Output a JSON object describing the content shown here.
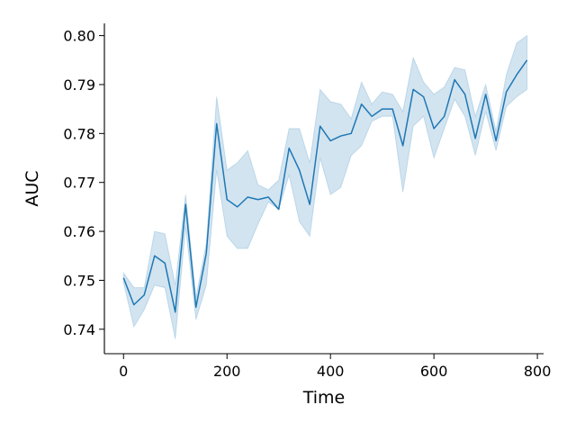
{
  "chart_data": {
    "type": "line",
    "xlabel": "Time",
    "ylabel": "AUC",
    "xlim": [
      -37,
      812
    ],
    "ylim": [
      0.735,
      0.8025
    ],
    "xticks": [
      0,
      200,
      400,
      600,
      800
    ],
    "yticks": [
      0.74,
      0.75,
      0.76,
      0.77,
      0.78,
      0.79,
      0.8
    ],
    "ytick_labels": [
      "0.74",
      "0.75",
      "0.76",
      "0.77",
      "0.78",
      "0.79",
      "0.80"
    ],
    "grid": false,
    "legend": "none",
    "series": [
      {
        "color": "#1f77b4",
        "band_color": "#1f77b4",
        "x": [
          0,
          20,
          40,
          60,
          80,
          100,
          120,
          140,
          160,
          180,
          200,
          220,
          240,
          260,
          280,
          300,
          320,
          340,
          360,
          380,
          400,
          420,
          440,
          460,
          480,
          500,
          520,
          540,
          560,
          580,
          600,
          620,
          640,
          660,
          680,
          700,
          720,
          740,
          760,
          780
        ],
        "y": [
          0.7505,
          0.745,
          0.747,
          0.755,
          0.7535,
          0.7435,
          0.7655,
          0.7445,
          0.7555,
          0.782,
          0.7665,
          0.765,
          0.767,
          0.7665,
          0.767,
          0.7645,
          0.777,
          0.7725,
          0.7655,
          0.7815,
          0.7785,
          0.7795,
          0.78,
          0.786,
          0.7835,
          0.785,
          0.785,
          0.7775,
          0.789,
          0.7875,
          0.781,
          0.7835,
          0.791,
          0.788,
          0.779,
          0.788,
          0.7785,
          0.7885,
          0.792,
          0.795
        ],
        "lower": [
          0.7495,
          0.7405,
          0.744,
          0.749,
          0.7485,
          0.738,
          0.761,
          0.742,
          0.749,
          0.7725,
          0.759,
          0.7565,
          0.7565,
          0.7615,
          0.766,
          0.7645,
          0.7715,
          0.762,
          0.759,
          0.775,
          0.7675,
          0.769,
          0.7755,
          0.7775,
          0.7825,
          0.7835,
          0.7835,
          0.768,
          0.7815,
          0.7835,
          0.775,
          0.781,
          0.787,
          0.7835,
          0.7755,
          0.7845,
          0.7765,
          0.7855,
          0.7875,
          0.789
        ],
        "upper": [
          0.7515,
          0.7485,
          0.7485,
          0.76,
          0.7595,
          0.749,
          0.7675,
          0.7465,
          0.7575,
          0.7875,
          0.7725,
          0.774,
          0.7765,
          0.7695,
          0.7685,
          0.7705,
          0.781,
          0.781,
          0.774,
          0.789,
          0.7865,
          0.786,
          0.783,
          0.7905,
          0.786,
          0.7885,
          0.788,
          0.7845,
          0.7955,
          0.7905,
          0.788,
          0.7895,
          0.7935,
          0.793,
          0.7835,
          0.79,
          0.7805,
          0.792,
          0.7985,
          0.8
        ]
      }
    ]
  }
}
